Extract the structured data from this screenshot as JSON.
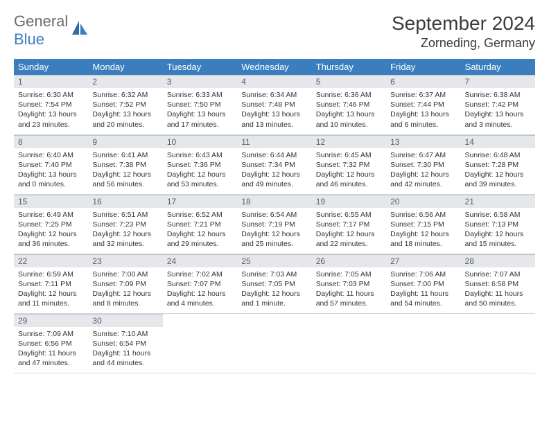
{
  "logo": {
    "text1": "General",
    "text2": "Blue"
  },
  "title": "September 2024",
  "location": "Zorneding, Germany",
  "colors": {
    "header_bg": "#3a7ebf",
    "header_text": "#ffffff",
    "daynum_bg": "#e5e7ea",
    "daynum_text": "#5a5f66",
    "body_text": "#333333",
    "logo_gray": "#6b6b6b",
    "logo_blue": "#3a7ebf"
  },
  "weekdays": [
    "Sunday",
    "Monday",
    "Tuesday",
    "Wednesday",
    "Thursday",
    "Friday",
    "Saturday"
  ],
  "days": [
    {
      "n": "1",
      "sr": "Sunrise: 6:30 AM",
      "ss": "Sunset: 7:54 PM",
      "dl": "Daylight: 13 hours and 23 minutes."
    },
    {
      "n": "2",
      "sr": "Sunrise: 6:32 AM",
      "ss": "Sunset: 7:52 PM",
      "dl": "Daylight: 13 hours and 20 minutes."
    },
    {
      "n": "3",
      "sr": "Sunrise: 6:33 AM",
      "ss": "Sunset: 7:50 PM",
      "dl": "Daylight: 13 hours and 17 minutes."
    },
    {
      "n": "4",
      "sr": "Sunrise: 6:34 AM",
      "ss": "Sunset: 7:48 PM",
      "dl": "Daylight: 13 hours and 13 minutes."
    },
    {
      "n": "5",
      "sr": "Sunrise: 6:36 AM",
      "ss": "Sunset: 7:46 PM",
      "dl": "Daylight: 13 hours and 10 minutes."
    },
    {
      "n": "6",
      "sr": "Sunrise: 6:37 AM",
      "ss": "Sunset: 7:44 PM",
      "dl": "Daylight: 13 hours and 6 minutes."
    },
    {
      "n": "7",
      "sr": "Sunrise: 6:38 AM",
      "ss": "Sunset: 7:42 PM",
      "dl": "Daylight: 13 hours and 3 minutes."
    },
    {
      "n": "8",
      "sr": "Sunrise: 6:40 AM",
      "ss": "Sunset: 7:40 PM",
      "dl": "Daylight: 13 hours and 0 minutes."
    },
    {
      "n": "9",
      "sr": "Sunrise: 6:41 AM",
      "ss": "Sunset: 7:38 PM",
      "dl": "Daylight: 12 hours and 56 minutes."
    },
    {
      "n": "10",
      "sr": "Sunrise: 6:43 AM",
      "ss": "Sunset: 7:36 PM",
      "dl": "Daylight: 12 hours and 53 minutes."
    },
    {
      "n": "11",
      "sr": "Sunrise: 6:44 AM",
      "ss": "Sunset: 7:34 PM",
      "dl": "Daylight: 12 hours and 49 minutes."
    },
    {
      "n": "12",
      "sr": "Sunrise: 6:45 AM",
      "ss": "Sunset: 7:32 PM",
      "dl": "Daylight: 12 hours and 46 minutes."
    },
    {
      "n": "13",
      "sr": "Sunrise: 6:47 AM",
      "ss": "Sunset: 7:30 PM",
      "dl": "Daylight: 12 hours and 42 minutes."
    },
    {
      "n": "14",
      "sr": "Sunrise: 6:48 AM",
      "ss": "Sunset: 7:28 PM",
      "dl": "Daylight: 12 hours and 39 minutes."
    },
    {
      "n": "15",
      "sr": "Sunrise: 6:49 AM",
      "ss": "Sunset: 7:25 PM",
      "dl": "Daylight: 12 hours and 36 minutes."
    },
    {
      "n": "16",
      "sr": "Sunrise: 6:51 AM",
      "ss": "Sunset: 7:23 PM",
      "dl": "Daylight: 12 hours and 32 minutes."
    },
    {
      "n": "17",
      "sr": "Sunrise: 6:52 AM",
      "ss": "Sunset: 7:21 PM",
      "dl": "Daylight: 12 hours and 29 minutes."
    },
    {
      "n": "18",
      "sr": "Sunrise: 6:54 AM",
      "ss": "Sunset: 7:19 PM",
      "dl": "Daylight: 12 hours and 25 minutes."
    },
    {
      "n": "19",
      "sr": "Sunrise: 6:55 AM",
      "ss": "Sunset: 7:17 PM",
      "dl": "Daylight: 12 hours and 22 minutes."
    },
    {
      "n": "20",
      "sr": "Sunrise: 6:56 AM",
      "ss": "Sunset: 7:15 PM",
      "dl": "Daylight: 12 hours and 18 minutes."
    },
    {
      "n": "21",
      "sr": "Sunrise: 6:58 AM",
      "ss": "Sunset: 7:13 PM",
      "dl": "Daylight: 12 hours and 15 minutes."
    },
    {
      "n": "22",
      "sr": "Sunrise: 6:59 AM",
      "ss": "Sunset: 7:11 PM",
      "dl": "Daylight: 12 hours and 11 minutes."
    },
    {
      "n": "23",
      "sr": "Sunrise: 7:00 AM",
      "ss": "Sunset: 7:09 PM",
      "dl": "Daylight: 12 hours and 8 minutes."
    },
    {
      "n": "24",
      "sr": "Sunrise: 7:02 AM",
      "ss": "Sunset: 7:07 PM",
      "dl": "Daylight: 12 hours and 4 minutes."
    },
    {
      "n": "25",
      "sr": "Sunrise: 7:03 AM",
      "ss": "Sunset: 7:05 PM",
      "dl": "Daylight: 12 hours and 1 minute."
    },
    {
      "n": "26",
      "sr": "Sunrise: 7:05 AM",
      "ss": "Sunset: 7:03 PM",
      "dl": "Daylight: 11 hours and 57 minutes."
    },
    {
      "n": "27",
      "sr": "Sunrise: 7:06 AM",
      "ss": "Sunset: 7:00 PM",
      "dl": "Daylight: 11 hours and 54 minutes."
    },
    {
      "n": "28",
      "sr": "Sunrise: 7:07 AM",
      "ss": "Sunset: 6:58 PM",
      "dl": "Daylight: 11 hours and 50 minutes."
    },
    {
      "n": "29",
      "sr": "Sunrise: 7:09 AM",
      "ss": "Sunset: 6:56 PM",
      "dl": "Daylight: 11 hours and 47 minutes."
    },
    {
      "n": "30",
      "sr": "Sunrise: 7:10 AM",
      "ss": "Sunset: 6:54 PM",
      "dl": "Daylight: 11 hours and 44 minutes."
    }
  ]
}
